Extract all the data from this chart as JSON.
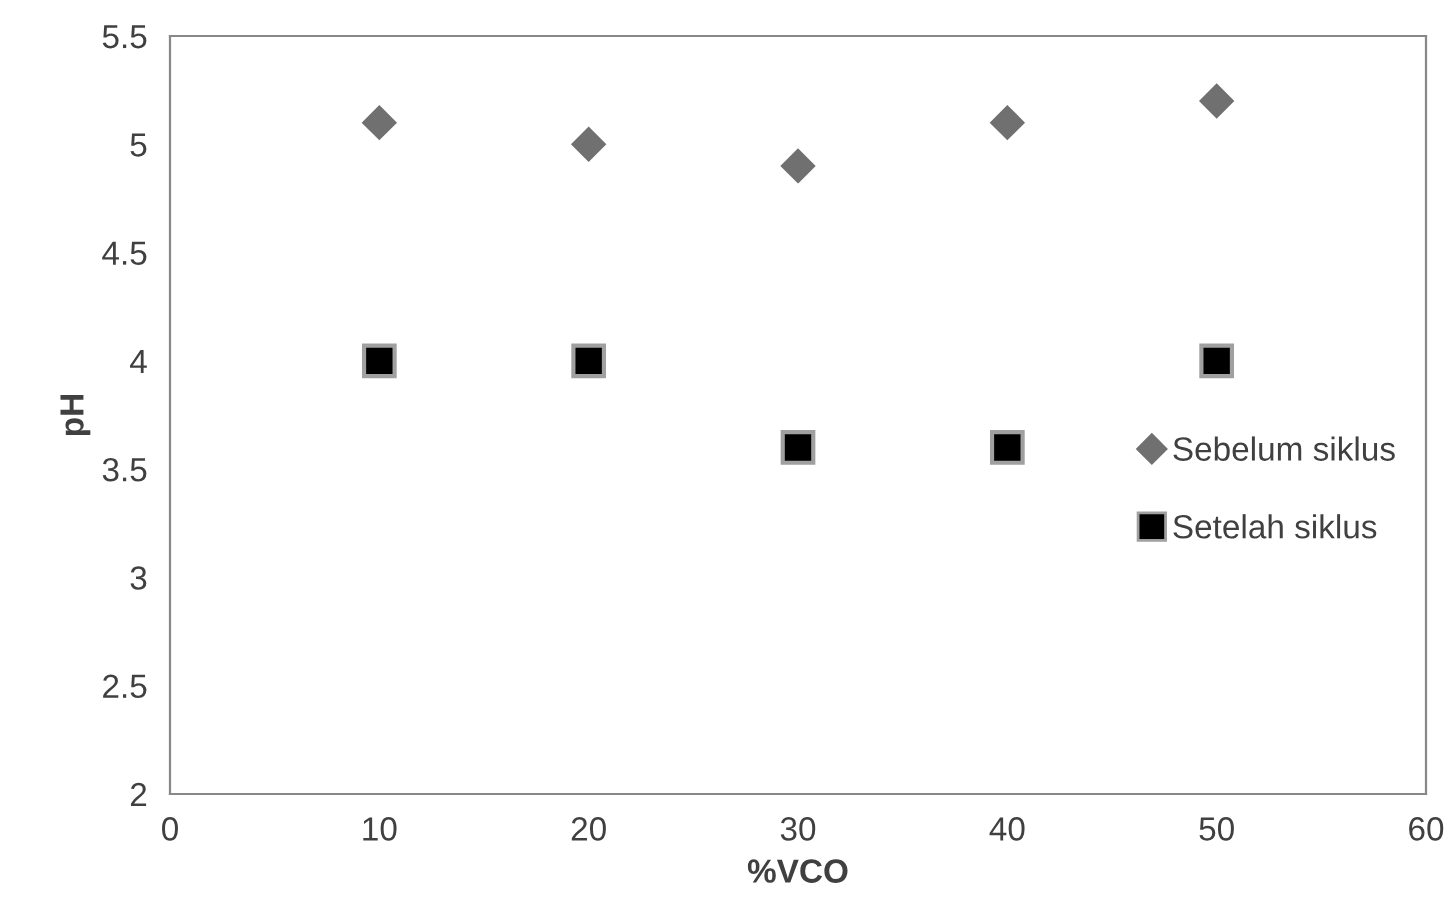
{
  "chart_data": {
    "type": "scatter",
    "xlabel": "%VCO",
    "ylabel": "pH",
    "x": [
      10,
      20,
      30,
      40,
      50
    ],
    "series": [
      {
        "name": "Sebelum siklus",
        "color": "#707070",
        "marker": "diamond",
        "values": [
          5.1,
          5.0,
          4.9,
          5.1,
          5.2
        ]
      },
      {
        "name": "Setelah siklus",
        "color": "#000000",
        "marker": "square",
        "values": [
          4.0,
          4.0,
          3.6,
          3.6,
          4.0
        ]
      }
    ],
    "xlim": [
      0,
      60
    ],
    "xticks": [
      0,
      10,
      20,
      30,
      40,
      50,
      60
    ],
    "ylim": [
      2,
      5.5
    ],
    "yticks": [
      2,
      2.5,
      3,
      3.5,
      4,
      4.5,
      5,
      5.5
    ],
    "grid": false,
    "legend": "right"
  }
}
